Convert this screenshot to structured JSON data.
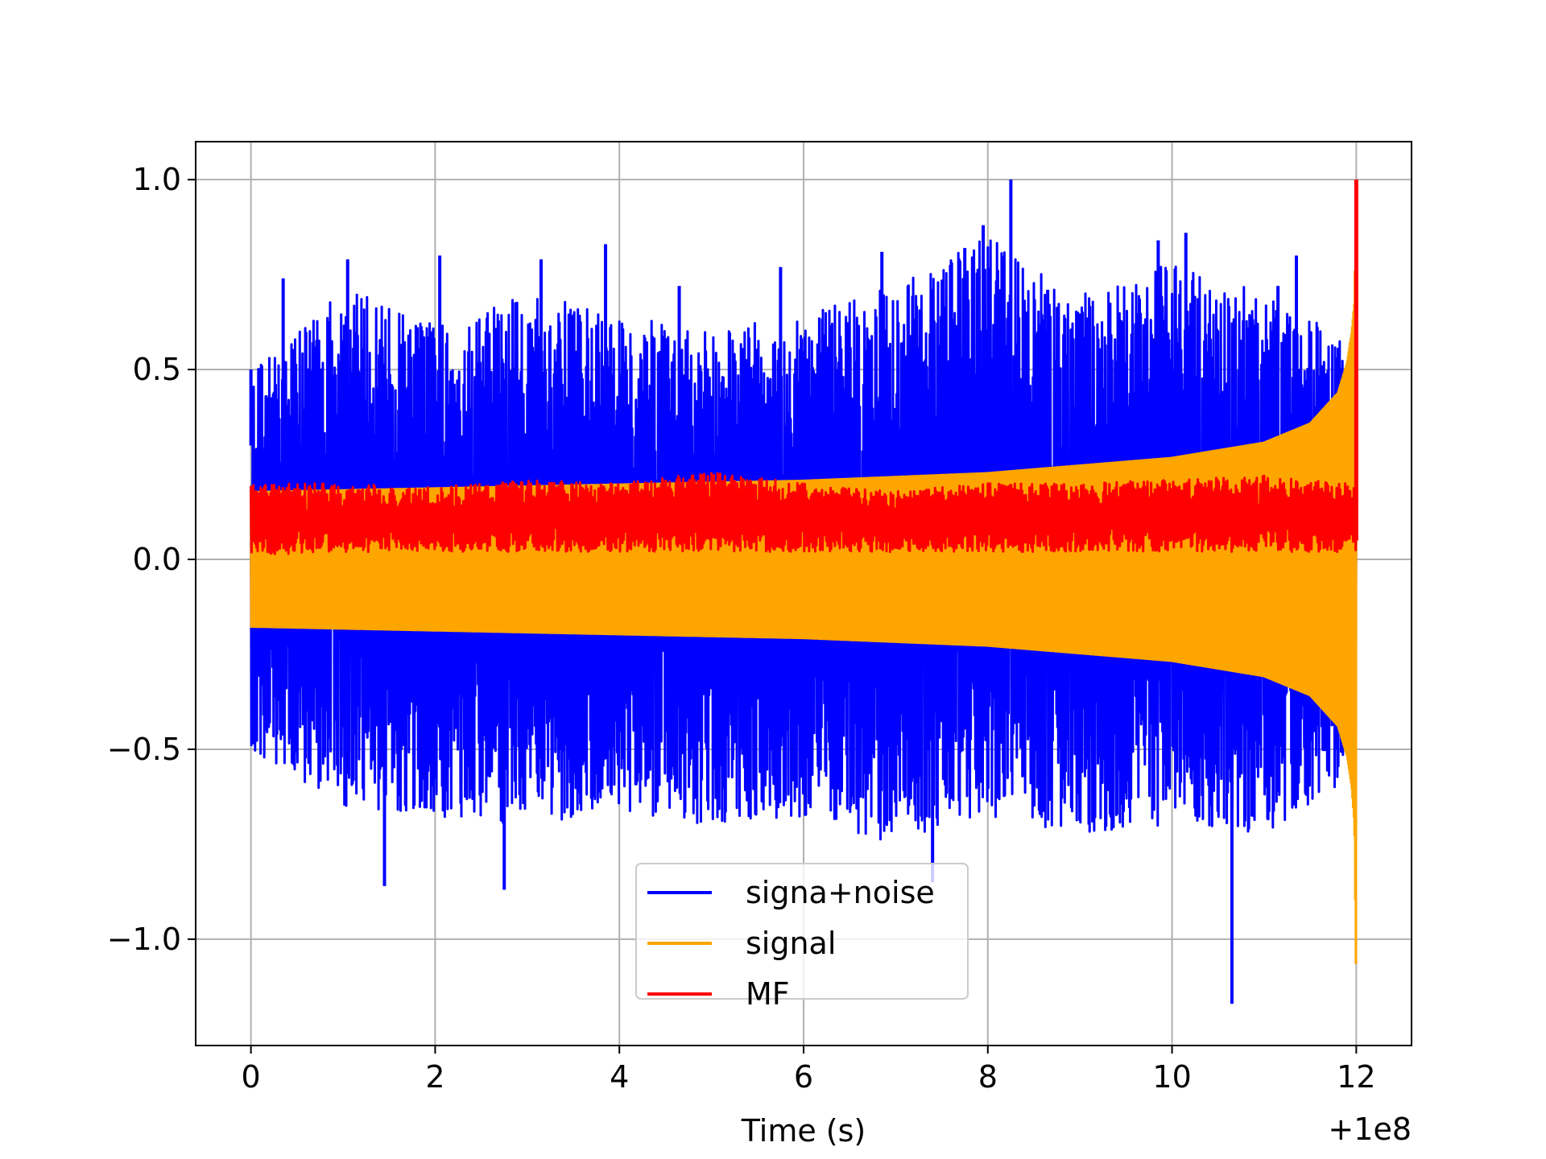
{
  "chart_data": {
    "type": "line",
    "title": "",
    "xlabel": "Time (s)",
    "ylabel": "",
    "x_offset_label": "+1e8",
    "xlim": [
      -0.6,
      12.6
    ],
    "ylim": [
      -1.28,
      1.1
    ],
    "x_ticks": [
      {
        "value": 0,
        "label": "0"
      },
      {
        "value": 2,
        "label": "2"
      },
      {
        "value": 4,
        "label": "4"
      },
      {
        "value": 6,
        "label": "6"
      },
      {
        "value": 8,
        "label": "8"
      },
      {
        "value": 10,
        "label": "10"
      },
      {
        "value": 12,
        "label": "12"
      }
    ],
    "y_ticks": [
      {
        "value": 1.0,
        "label": "1.0"
      },
      {
        "value": 0.5,
        "label": "0.5"
      },
      {
        "value": 0.0,
        "label": "0.0"
      },
      {
        "value": -0.5,
        "label": "−0.5"
      },
      {
        "value": -1.0,
        "label": "−1.0"
      }
    ],
    "grid": true,
    "legend_position": "lower-center",
    "series": [
      {
        "name": "signa+noise",
        "color": "#0000ff",
        "envelope": {
          "x": [
            0,
            1,
            2,
            3,
            4,
            5,
            6,
            7,
            8,
            9,
            10,
            11,
            11.5,
            11.8,
            12
          ],
          "upper": [
            0.5,
            0.72,
            0.62,
            0.7,
            0.65,
            0.6,
            0.65,
            0.72,
            0.85,
            0.7,
            0.78,
            0.7,
            0.63,
            0.62,
            0.3
          ],
          "lower": [
            -0.5,
            -0.65,
            -0.68,
            -0.7,
            -0.66,
            -0.7,
            -0.68,
            -0.75,
            -0.68,
            -0.72,
            -0.7,
            -0.72,
            -0.65,
            -0.6,
            -0.3
          ]
        },
        "peaks": [
          {
            "x": 0.0,
            "y": 0.5
          },
          {
            "x": 0.35,
            "y": 0.74
          },
          {
            "x": 1.05,
            "y": 0.79
          },
          {
            "x": 1.45,
            "y": -0.86
          },
          {
            "x": 2.05,
            "y": 0.8
          },
          {
            "x": 2.75,
            "y": -0.87
          },
          {
            "x": 3.15,
            "y": 0.79
          },
          {
            "x": 3.85,
            "y": 0.83
          },
          {
            "x": 4.65,
            "y": 0.72
          },
          {
            "x": 5.75,
            "y": 0.77
          },
          {
            "x": 6.85,
            "y": 0.81
          },
          {
            "x": 7.4,
            "y": -0.85
          },
          {
            "x": 7.75,
            "y": 0.82
          },
          {
            "x": 7.95,
            "y": 0.88
          },
          {
            "x": 8.25,
            "y": 1.0
          },
          {
            "x": 8.65,
            "y": 0.71
          },
          {
            "x": 9.85,
            "y": 0.84
          },
          {
            "x": 10.15,
            "y": 0.86
          },
          {
            "x": 10.65,
            "y": -1.17
          },
          {
            "x": 11.15,
            "y": 0.72
          },
          {
            "x": 11.35,
            "y": 0.8
          }
        ]
      },
      {
        "name": "signal",
        "color": "#ffa500",
        "envelope": {
          "x": [
            0,
            2,
            4,
            6,
            8,
            10,
            11,
            11.5,
            11.8,
            11.9,
            11.95,
            11.98,
            12.0
          ],
          "upper": [
            0.18,
            0.19,
            0.2,
            0.21,
            0.23,
            0.27,
            0.31,
            0.36,
            0.44,
            0.52,
            0.6,
            0.68,
            1.0
          ],
          "lower": [
            -0.18,
            -0.19,
            -0.2,
            -0.21,
            -0.23,
            -0.27,
            -0.31,
            -0.36,
            -0.44,
            -0.52,
            -0.6,
            -0.7,
            -1.15
          ]
        }
      },
      {
        "name": "MF",
        "color": "#ff0000",
        "envelope": {
          "x": [
            0,
            1,
            2,
            3,
            4,
            5,
            6,
            7,
            8,
            9,
            10,
            11,
            11.9
          ],
          "upper": [
            0.2,
            0.2,
            0.19,
            0.21,
            0.2,
            0.23,
            0.2,
            0.18,
            0.2,
            0.2,
            0.21,
            0.22,
            0.2
          ],
          "lower": [
            0.01,
            0.02,
            0.02,
            0.02,
            0.02,
            0.02,
            0.02,
            0.02,
            0.02,
            0.02,
            0.02,
            0.02,
            0.02
          ]
        },
        "peaks": [
          {
            "x": 12.0,
            "y": 1.0
          }
        ]
      }
    ]
  }
}
